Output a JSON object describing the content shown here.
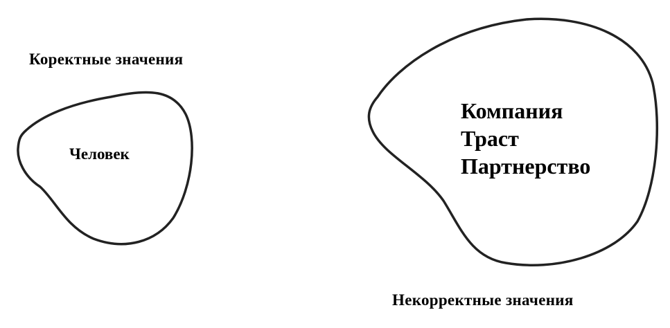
{
  "diagram": {
    "correct_set": {
      "caption": "Коректные значения",
      "items": [
        "Человек"
      ]
    },
    "incorrect_set": {
      "caption": "Некорректные значения",
      "items": [
        "Компания",
        "Траст",
        "Партнерство"
      ]
    },
    "colors": {
      "stroke": "#222222",
      "text": "#000000",
      "background": "#ffffff"
    }
  }
}
